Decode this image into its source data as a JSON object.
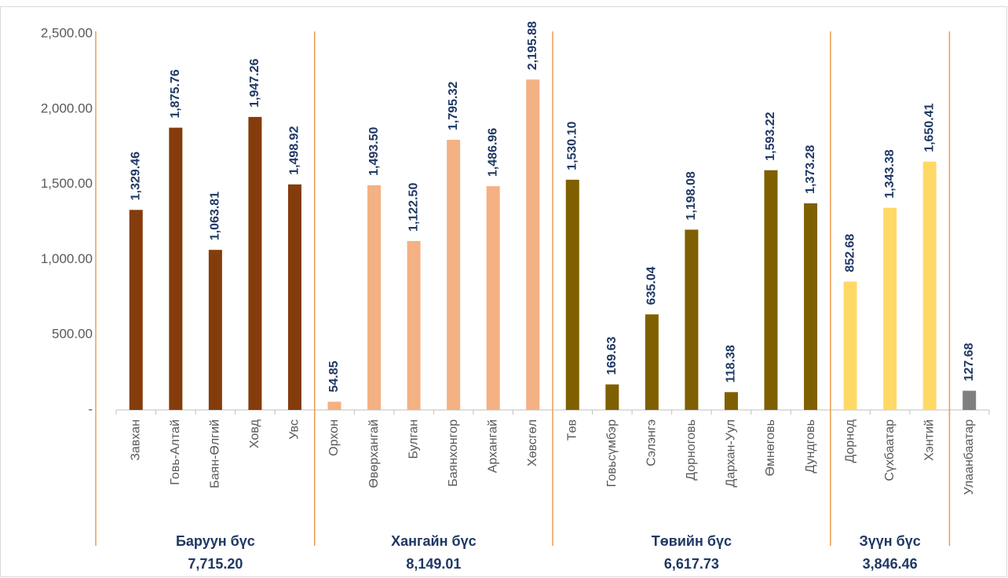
{
  "chart_data": {
    "type": "bar",
    "categories": [
      "Завхан",
      "Говь-Алтай",
      "Баян-Өлгий",
      "Ховд",
      "Увс",
      "Орхон",
      "Өвөрхангай",
      "Булган",
      "Баянхонгор",
      "Архангай",
      "Хөвсгөл",
      "Төв",
      "Говьсүмбэр",
      "Сэлэнгэ",
      "Дорноговь",
      "Дархан-Уул",
      "Өмнөговь",
      "Дундговь",
      "Дорнод",
      "Сүхбаатар",
      "Хэнтий",
      "Улаанбаатар"
    ],
    "series": [
      {
        "name": "Баруун бүс",
        "color": "#843c0c",
        "total": 7715.2,
        "total_label": "7,715.20",
        "values": [
          1329.46,
          1875.76,
          1063.81,
          1947.26,
          1498.92,
          null,
          null,
          null,
          null,
          null,
          null,
          null,
          null,
          null,
          null,
          null,
          null,
          null,
          null,
          null,
          null,
          null
        ],
        "value_labels": [
          "1,329.46",
          "1,875.76",
          "1,063.81",
          "1,947.26",
          "1,498.92",
          null,
          null,
          null,
          null,
          null,
          null,
          null,
          null,
          null,
          null,
          null,
          null,
          null,
          null,
          null,
          null,
          null
        ]
      },
      {
        "name": "Хангайн бүс",
        "color": "#f4b183",
        "total": 8149.01,
        "total_label": "8,149.01",
        "values": [
          null,
          null,
          null,
          null,
          null,
          54.85,
          1493.5,
          1122.5,
          1795.32,
          1486.96,
          2195.88,
          null,
          null,
          null,
          null,
          null,
          null,
          null,
          null,
          null,
          null,
          null
        ],
        "value_labels": [
          null,
          null,
          null,
          null,
          null,
          "54.85",
          "1,493.50",
          "1,122.50",
          "1,795.32",
          "1,486.96",
          "2,195.88",
          null,
          null,
          null,
          null,
          null,
          null,
          null,
          null,
          null,
          null,
          null
        ]
      },
      {
        "name": "Төвийн бүс",
        "color": "#7f6000",
        "total": 6617.73,
        "total_label": "6,617.73",
        "values": [
          null,
          null,
          null,
          null,
          null,
          null,
          null,
          null,
          null,
          null,
          null,
          1530.1,
          169.63,
          635.04,
          1198.08,
          118.38,
          1593.22,
          1373.28,
          null,
          null,
          null,
          null
        ],
        "value_labels": [
          null,
          null,
          null,
          null,
          null,
          null,
          null,
          null,
          null,
          null,
          null,
          "1,530.10",
          "169.63",
          "635.04",
          "1,198.08",
          "118.38",
          "1,593.22",
          "1,373.28",
          null,
          null,
          null,
          null
        ]
      },
      {
        "name": "Зүүн бүс",
        "color": "#ffd966",
        "total": 3846.46,
        "total_label": "3,846.46",
        "values": [
          null,
          null,
          null,
          null,
          null,
          null,
          null,
          null,
          null,
          null,
          null,
          null,
          null,
          null,
          null,
          null,
          null,
          null,
          852.68,
          1343.38,
          1650.41,
          null
        ],
        "value_labels": [
          null,
          null,
          null,
          null,
          null,
          null,
          null,
          null,
          null,
          null,
          null,
          null,
          null,
          null,
          null,
          null,
          null,
          null,
          "852.68",
          "1,343.38",
          "1,650.41",
          null
        ]
      },
      {
        "color": "#7f7f7f",
        "values": [
          null,
          null,
          null,
          null,
          null,
          null,
          null,
          null,
          null,
          null,
          null,
          null,
          null,
          null,
          null,
          null,
          null,
          null,
          null,
          null,
          null,
          127.68
        ],
        "value_labels": [
          null,
          null,
          null,
          null,
          null,
          null,
          null,
          null,
          null,
          null,
          null,
          null,
          null,
          null,
          null,
          null,
          null,
          null,
          null,
          null,
          null,
          "127.68"
        ]
      }
    ],
    "ylim": [
      0,
      2500
    ],
    "yticks": [
      {
        "value": 0,
        "label": "-"
      },
      {
        "value": 500,
        "label": "500.00"
      },
      {
        "value": 1000,
        "label": "1,000.00"
      },
      {
        "value": 1500,
        "label": "1,500.00"
      },
      {
        "value": 2000,
        "label": "2,000.00"
      },
      {
        "value": 2500,
        "label": "2,500.00"
      }
    ],
    "grid": false
  }
}
